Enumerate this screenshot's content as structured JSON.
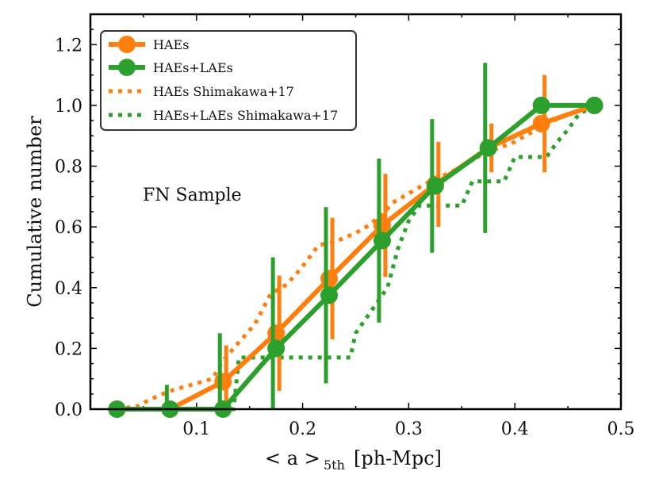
{
  "chart_data": {
    "type": "line",
    "xlabel": "< a >",
    "xlabel_subscript": "5th",
    "xlabel_unit": "[ph-Mpc]",
    "ylabel": "Cumulative number",
    "xlim": [
      0.0,
      0.5
    ],
    "ylim": [
      0.0,
      1.3
    ],
    "xticks": [
      0.1,
      0.2,
      0.3,
      0.4,
      0.5
    ],
    "xtick_labels": [
      "0.1",
      "0.2",
      "0.3",
      "0.4",
      "0.5"
    ],
    "yticks": [
      0.0,
      0.2,
      0.4,
      0.6,
      0.8,
      1.0,
      1.2
    ],
    "ytick_labels": [
      "0.0",
      "0.2",
      "0.4",
      "0.6",
      "0.8",
      "1.0",
      "1.2"
    ],
    "annotation": "FN Sample",
    "legend_position": "top-left",
    "series": [
      {
        "name": "HAEs",
        "style": "solid-marker",
        "color": "#ff7f0e",
        "x": [
          0.025,
          0.075,
          0.125,
          0.175,
          0.225,
          0.275,
          0.325,
          0.375,
          0.425,
          0.475
        ],
        "y": [
          0.0,
          0.0,
          0.09,
          0.25,
          0.43,
          0.605,
          0.74,
          0.86,
          0.94,
          1.0
        ],
        "err": [
          0.0,
          0.0,
          0.12,
          0.19,
          0.2,
          0.17,
          0.14,
          0.08,
          0.16,
          0.0
        ]
      },
      {
        "name": "HAEs+LAEs",
        "style": "solid-marker",
        "color": "#2ca02c",
        "x": [
          0.025,
          0.075,
          0.125,
          0.175,
          0.225,
          0.275,
          0.325,
          0.375,
          0.425,
          0.475
        ],
        "y": [
          0.0,
          0.0,
          0.0,
          0.2,
          0.375,
          0.555,
          0.735,
          0.86,
          1.0,
          1.0
        ],
        "err": [
          0.0,
          0.08,
          0.25,
          0.3,
          0.29,
          0.27,
          0.22,
          0.28,
          0.0,
          0.0
        ]
      },
      {
        "name": "HAEs Shimakawa+17",
        "style": "dotted-step",
        "color": "#ff7f0e",
        "x": [
          0.025,
          0.045,
          0.055,
          0.075,
          0.095,
          0.115,
          0.125,
          0.14,
          0.155,
          0.17,
          0.185,
          0.2,
          0.215,
          0.23,
          0.25,
          0.26,
          0.275,
          0.285,
          0.3,
          0.32,
          0.34,
          0.37,
          0.4,
          0.43,
          0.45,
          0.47
        ],
        "y": [
          0.0,
          0.01,
          0.03,
          0.06,
          0.08,
          0.1,
          0.16,
          0.22,
          0.28,
          0.38,
          0.41,
          0.47,
          0.54,
          0.55,
          0.58,
          0.6,
          0.64,
          0.68,
          0.71,
          0.75,
          0.78,
          0.84,
          0.88,
          0.94,
          0.97,
          1.0
        ]
      },
      {
        "name": "HAEs+LAEs Shimakawa+17",
        "style": "dotted-step",
        "color": "#2ca02c",
        "x": [
          0.025,
          0.135,
          0.14,
          0.245,
          0.25,
          0.26,
          0.27,
          0.28,
          0.29,
          0.3,
          0.31,
          0.35,
          0.36,
          0.39,
          0.4,
          0.43,
          0.44,
          0.45,
          0.46,
          0.475
        ],
        "y": [
          0.0,
          0.0,
          0.17,
          0.17,
          0.25,
          0.3,
          0.35,
          0.4,
          0.53,
          0.62,
          0.67,
          0.67,
          0.75,
          0.75,
          0.83,
          0.83,
          0.88,
          0.92,
          0.97,
          1.0
        ]
      }
    ]
  }
}
